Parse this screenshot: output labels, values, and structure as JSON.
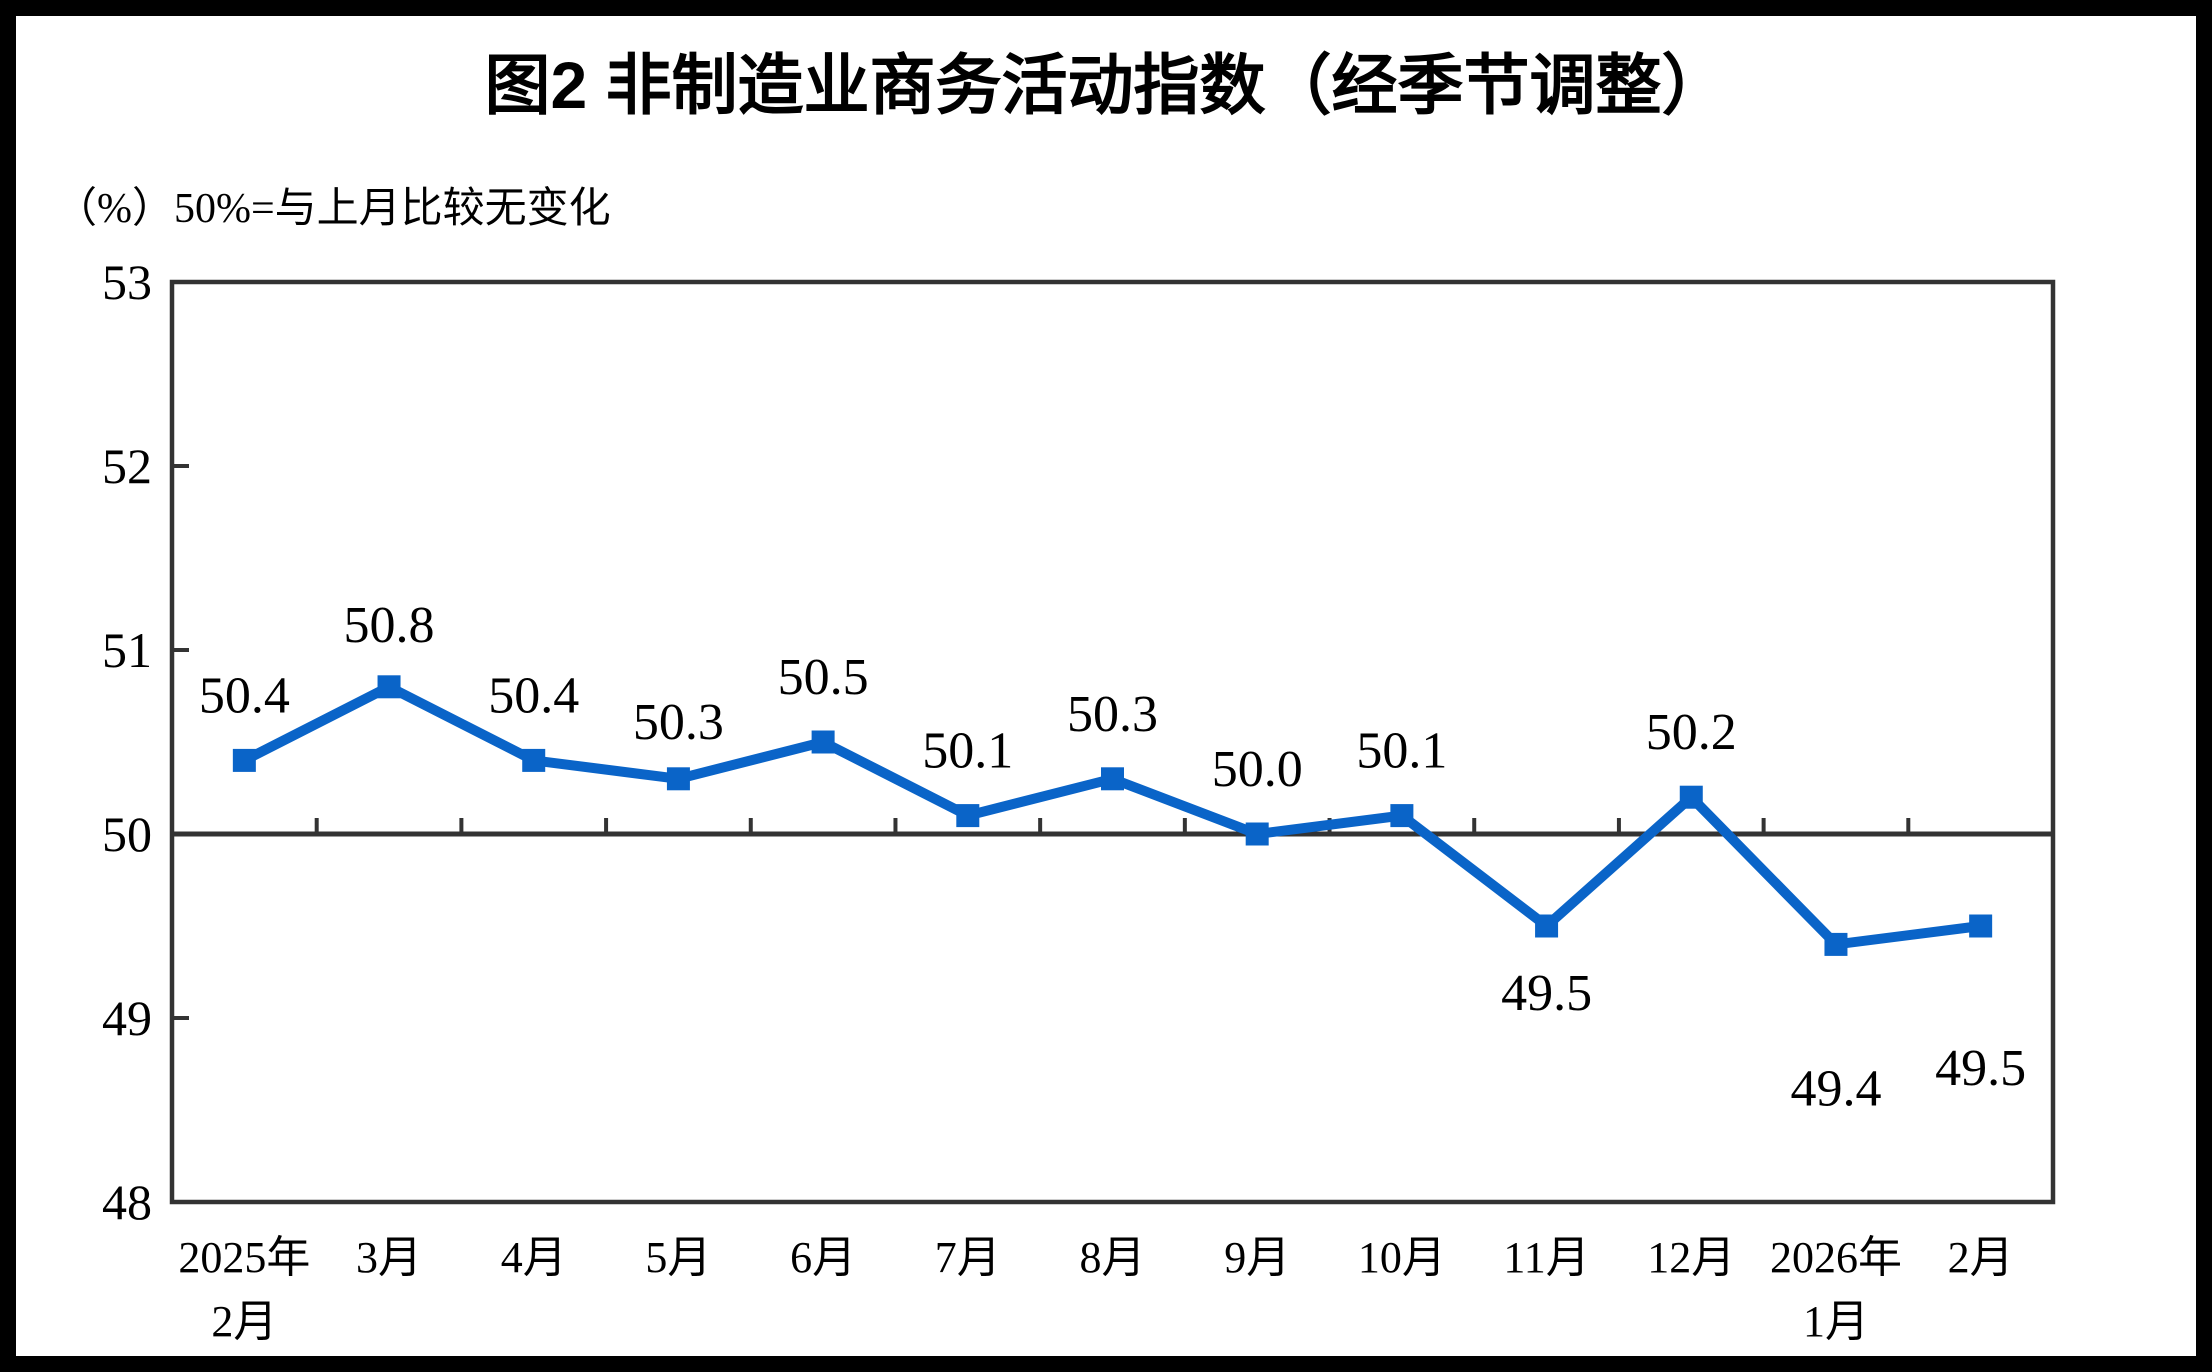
{
  "title": "图2  非制造业商务活动指数（经季节调整）",
  "subtitle": "（%）50%=与上月比较无变化",
  "colors": {
    "line": "#0A64C8",
    "marker": "#0A64C8",
    "axis": "#333333",
    "text": "#000000",
    "frame": "#000000",
    "background": "#FFFFFF"
  },
  "chart_data": {
    "type": "line",
    "title": "图2  非制造业商务活动指数（经季节调整）",
    "unit_note": "（%）50%=与上月比较无变化",
    "categories": [
      [
        "2025年",
        "2月"
      ],
      [
        "3月"
      ],
      [
        "4月"
      ],
      [
        "5月"
      ],
      [
        "6月"
      ],
      [
        "7月"
      ],
      [
        "8月"
      ],
      [
        "9月"
      ],
      [
        "10月"
      ],
      [
        "11月"
      ],
      [
        "12月"
      ],
      [
        "2026年",
        "1月"
      ],
      [
        "2月"
      ]
    ],
    "series": [
      {
        "name": "非制造业商务活动指数",
        "values": [
          50.4,
          50.8,
          50.4,
          50.3,
          50.5,
          50.1,
          50.3,
          50.0,
          50.1,
          49.5,
          50.2,
          49.4,
          49.5
        ]
      }
    ],
    "data_labels": [
      "50.4",
      "50.8",
      "50.4",
      "50.3",
      "50.5",
      "50.1",
      "50.3",
      "50.0",
      "50.1",
      "49.5",
      "50.2",
      "49.4",
      "49.5"
    ],
    "label_positions": [
      "above",
      "above",
      "above",
      "above",
      "above",
      "above",
      "above",
      "above",
      "above",
      "below",
      "above",
      "below",
      "below"
    ],
    "label_baseline_dy": [
      -48,
      -45,
      -48,
      -40,
      -48,
      -48,
      -48,
      -48,
      -48,
      84,
      -48,
      161,
      159
    ],
    "ylim": [
      48,
      53
    ],
    "yticks": [
      53,
      52,
      51,
      50,
      49,
      48
    ],
    "baseline_value": 50,
    "grid": false,
    "legend": "none",
    "marker": "square",
    "xlabel": "",
    "ylabel": "%"
  }
}
